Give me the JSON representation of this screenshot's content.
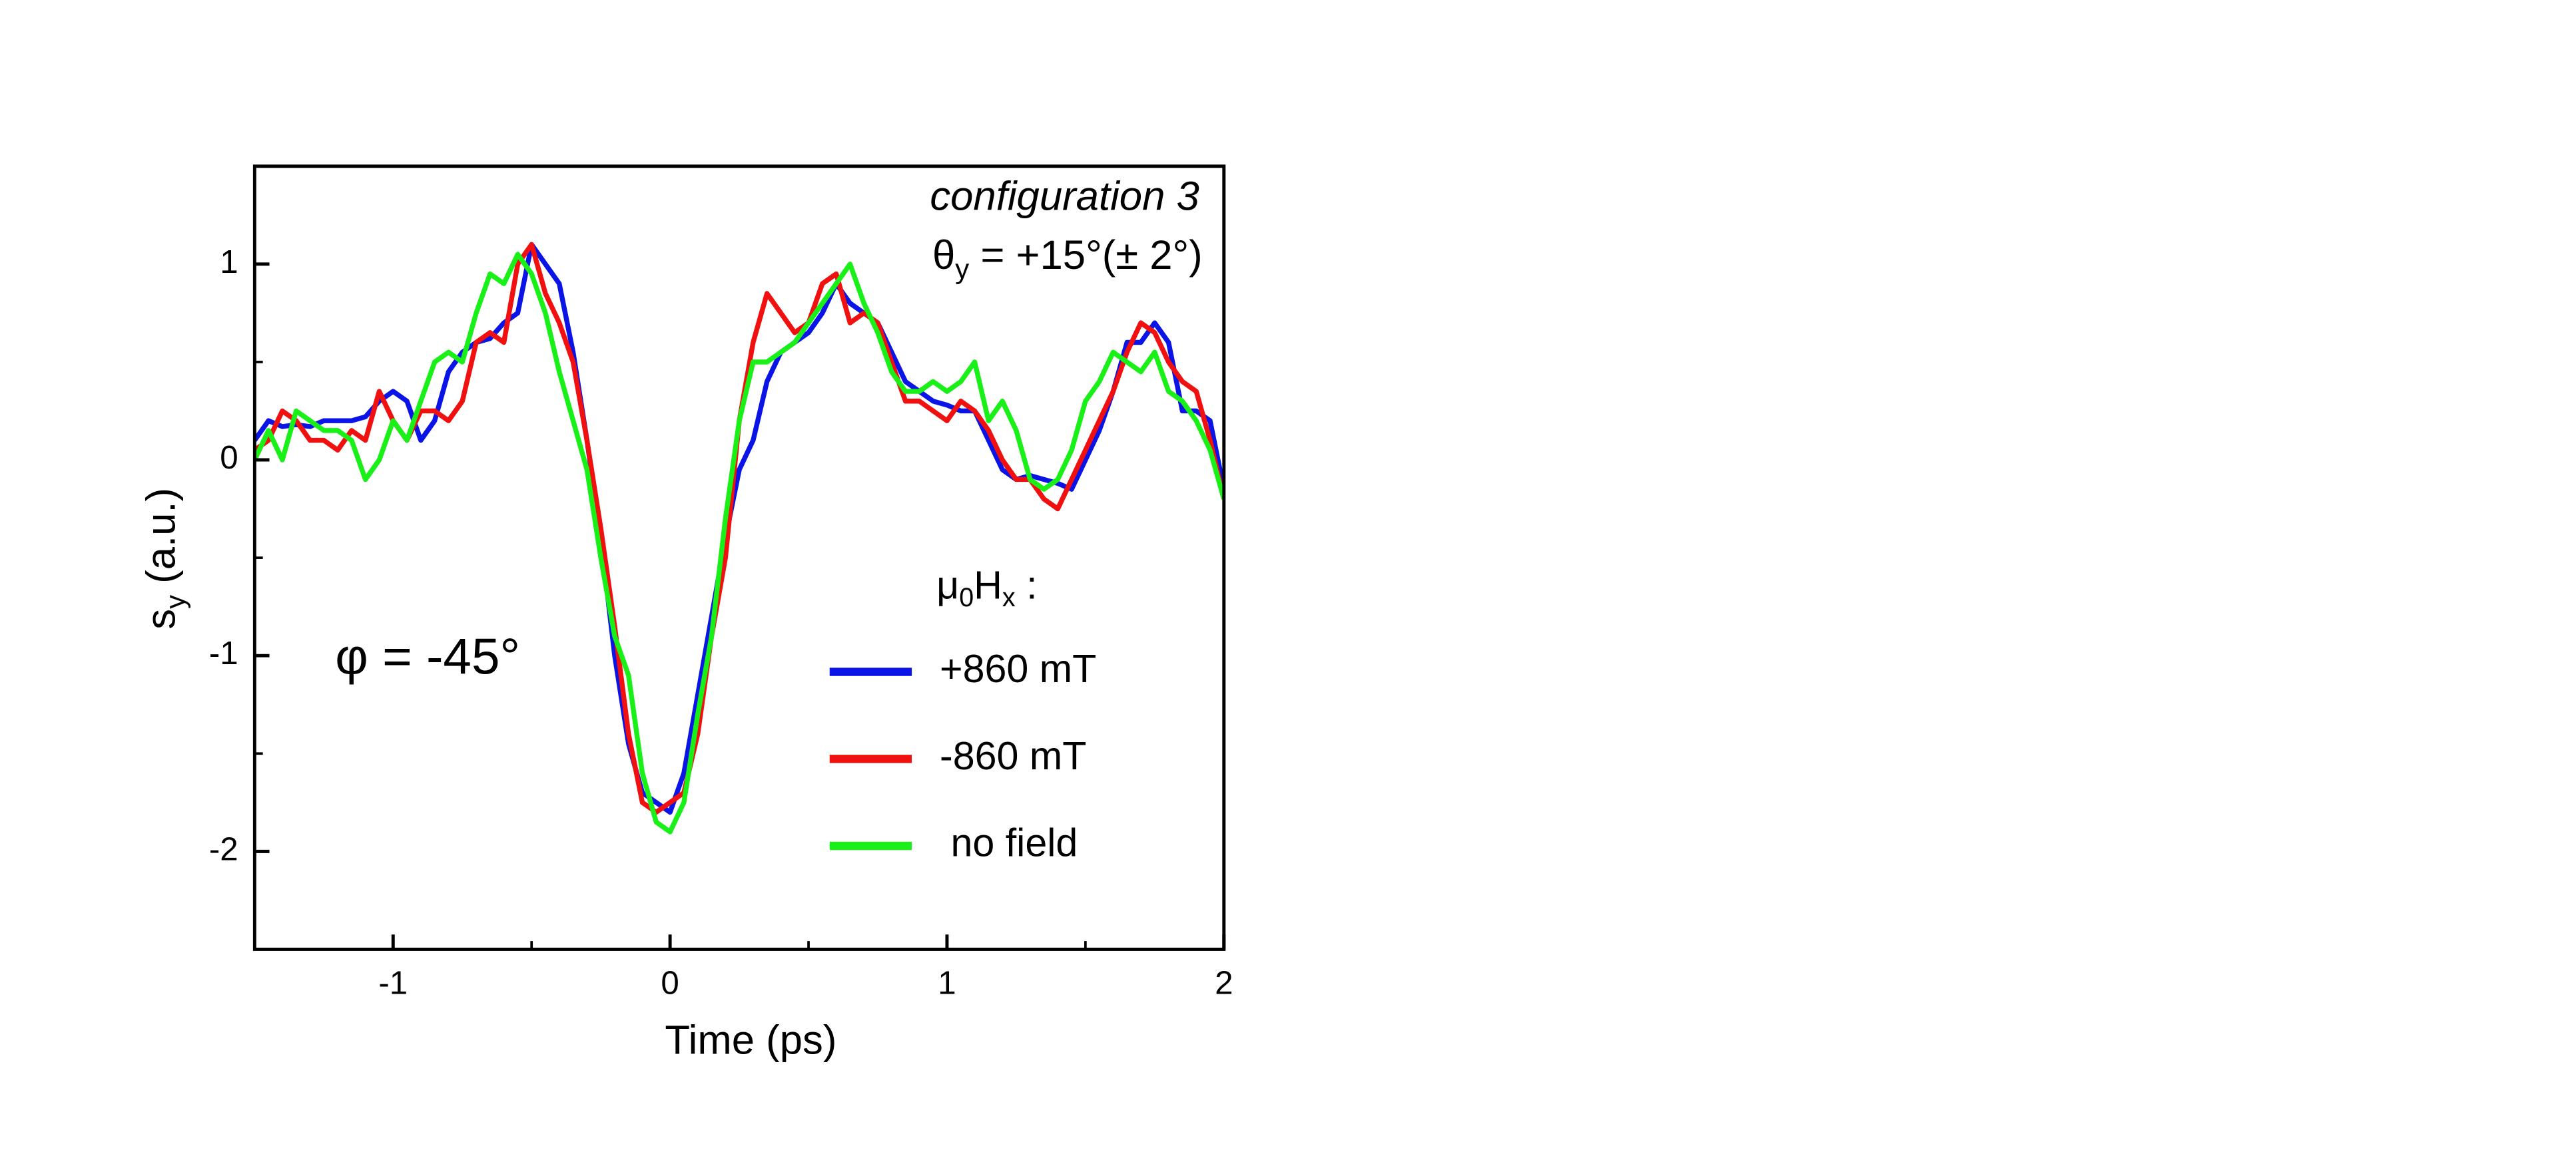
{
  "chart_data": {
    "type": "line",
    "title": "configuration 3",
    "subtitle": {
      "main": "θ",
      "sub": "y",
      "rest": " = +15°(± 2°)"
    },
    "x_label": "Time (ps)",
    "y_label": {
      "main": "s",
      "sub": "y",
      "rest": " (a.u.)"
    },
    "annotation": "φ = -45°",
    "legend_title": {
      "main": "μ",
      "sub1": "0",
      "mid": "H",
      "sub2": "x",
      "rest": " :"
    },
    "legend": "right",
    "xlim": [
      -1.5,
      2
    ],
    "ylim": [
      -2.5,
      1.5
    ],
    "xticks": [
      -1,
      0,
      1,
      2
    ],
    "yticks": [
      1,
      0,
      -1,
      -2
    ],
    "x_minor_ticks": [
      -0.5,
      0.5,
      1.5
    ],
    "y_minor_ticks": [
      0.5,
      -0.5,
      -1.5
    ],
    "x": [
      -1.5,
      -1.45,
      -1.4,
      -1.35,
      -1.3,
      -1.25,
      -1.2,
      -1.15,
      -1.1,
      -1.05,
      -1.0,
      -0.95,
      -0.9,
      -0.85,
      -0.8,
      -0.75,
      -0.7,
      -0.65,
      -0.6,
      -0.55,
      -0.5,
      -0.45,
      -0.4,
      -0.35,
      -0.3,
      -0.25,
      -0.2,
      -0.15,
      -0.1,
      -0.05,
      0,
      0.05,
      0.1,
      0.15,
      0.2,
      0.25,
      0.3,
      0.35,
      0.4,
      0.45,
      0.5,
      0.55,
      0.6,
      0.65,
      0.7,
      0.75,
      0.8,
      0.85,
      0.9,
      0.95,
      1.0,
      1.05,
      1.1,
      1.15,
      1.2,
      1.25,
      1.3,
      1.35,
      1.4,
      1.45,
      1.5,
      1.55,
      1.6,
      1.65,
      1.7,
      1.75,
      1.8,
      1.85,
      1.9,
      1.95,
      2.0
    ],
    "series": [
      {
        "name": "+860 mT",
        "color": "#0a14e6",
        "values": [
          0.1,
          0.2,
          0.17,
          0.18,
          0.17,
          0.2,
          0.2,
          0.2,
          0.22,
          0.3,
          0.35,
          0.3,
          0.1,
          0.2,
          0.45,
          0.55,
          0.6,
          0.62,
          0.7,
          0.75,
          1.1,
          1.0,
          0.9,
          0.55,
          0.1,
          -0.4,
          -1.0,
          -1.45,
          -1.7,
          -1.75,
          -1.8,
          -1.6,
          -1.2,
          -0.8,
          -0.4,
          -0.05,
          0.1,
          0.4,
          0.55,
          0.6,
          0.65,
          0.75,
          0.9,
          0.8,
          0.75,
          0.7,
          0.55,
          0.4,
          0.35,
          0.3,
          0.28,
          0.25,
          0.25,
          0.1,
          -0.05,
          -0.1,
          -0.08,
          -0.1,
          -0.12,
          -0.15,
          0.0,
          0.15,
          0.35,
          0.6,
          0.6,
          0.7,
          0.6,
          0.25,
          0.25,
          0.2,
          -0.15
        ]
      },
      {
        "name": "-860 mT",
        "color": "#f01010",
        "values": [
          0.05,
          0.1,
          0.25,
          0.2,
          0.1,
          0.1,
          0.05,
          0.15,
          0.1,
          0.35,
          0.2,
          0.1,
          0.25,
          0.25,
          0.2,
          0.3,
          0.6,
          0.65,
          0.6,
          1.0,
          1.1,
          0.85,
          0.7,
          0.5,
          0.1,
          -0.35,
          -0.85,
          -1.4,
          -1.75,
          -1.8,
          -1.75,
          -1.7,
          -1.4,
          -0.9,
          -0.5,
          0.2,
          0.6,
          0.85,
          0.75,
          0.65,
          0.7,
          0.9,
          0.95,
          0.7,
          0.75,
          0.7,
          0.5,
          0.3,
          0.3,
          0.25,
          0.2,
          0.3,
          0.25,
          0.15,
          0.0,
          -0.1,
          -0.1,
          -0.2,
          -0.25,
          -0.1,
          0.05,
          0.2,
          0.35,
          0.55,
          0.7,
          0.65,
          0.5,
          0.4,
          0.35,
          0.1,
          -0.2
        ]
      },
      {
        "name": " no field",
        "color": "#18f018",
        "values": [
          0.0,
          0.15,
          0.0,
          0.25,
          0.2,
          0.15,
          0.15,
          0.1,
          -0.1,
          0.0,
          0.2,
          0.1,
          0.3,
          0.5,
          0.55,
          0.5,
          0.75,
          0.95,
          0.9,
          1.05,
          0.95,
          0.75,
          0.45,
          0.2,
          -0.05,
          -0.5,
          -0.9,
          -1.1,
          -1.6,
          -1.85,
          -1.9,
          -1.75,
          -1.3,
          -0.9,
          -0.3,
          0.2,
          0.5,
          0.5,
          0.55,
          0.6,
          0.7,
          0.8,
          0.9,
          1.0,
          0.8,
          0.65,
          0.45,
          0.35,
          0.35,
          0.4,
          0.35,
          0.4,
          0.5,
          0.2,
          0.3,
          0.15,
          -0.1,
          -0.15,
          -0.1,
          0.05,
          0.3,
          0.4,
          0.55,
          0.5,
          0.45,
          0.55,
          0.35,
          0.3,
          0.2,
          0.05,
          -0.2
        ]
      }
    ]
  }
}
